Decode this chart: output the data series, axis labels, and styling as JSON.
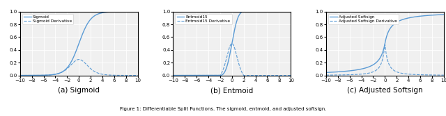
{
  "xlim": [
    -10,
    10
  ],
  "ylim": [
    0,
    1.0
  ],
  "xticks": [
    -10,
    -8,
    -6,
    -4,
    -2,
    0,
    2,
    4,
    6,
    8,
    10
  ],
  "yticks": [
    0.0,
    0.2,
    0.4,
    0.6,
    0.8,
    1.0
  ],
  "line_color": "#5b9bd5",
  "subplot_titles": [
    "(a) Sigmoid",
    "(b) Entmoid",
    "(c) Adjusted Softsign"
  ],
  "legend_labels": [
    [
      "Sigmoid",
      "Sigmoid Derivative"
    ],
    [
      "Entmoid15",
      "Entmoid15 Derivative"
    ],
    [
      "Adjusted Softsign",
      "Adjusted Softsign Derivative"
    ]
  ],
  "figure_title": "Figure 1: Differentiable Split Functions. The sigmoid, entmoid, and adjusted softsign.",
  "bg_color": "#ffffff",
  "plot_bg_color": "#f0f0f0"
}
